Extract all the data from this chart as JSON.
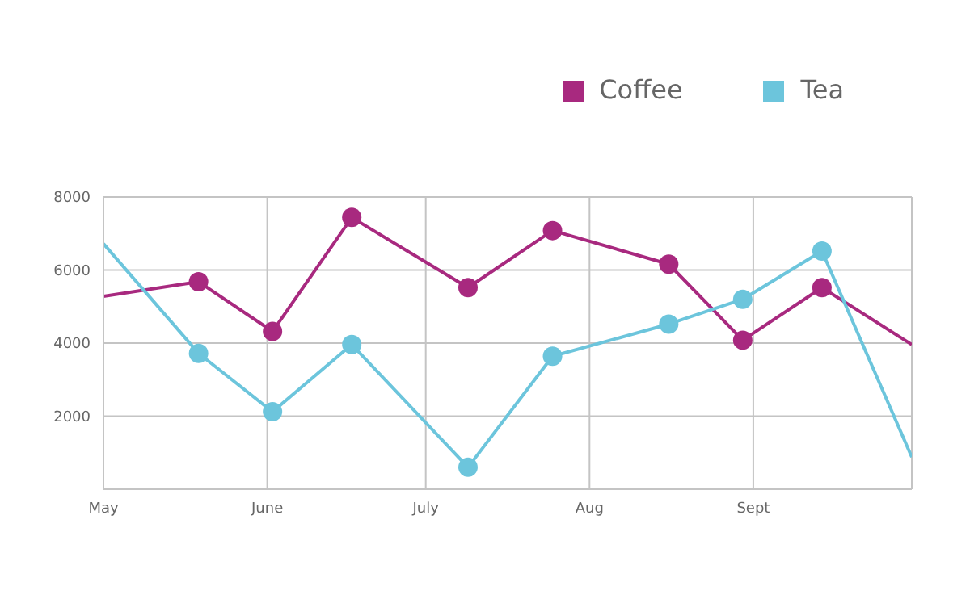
{
  "chart_data": {
    "type": "line",
    "x": [
      "--05-01",
      "--05-19",
      "--06-02",
      "--06-17",
      "--07-09",
      "--07-25",
      "--08-16",
      "--08-30",
      "--09-14",
      "--10-01"
    ],
    "series": [
      {
        "name": "Coffee",
        "color": "#a8297f",
        "values": [
          5280,
          5680,
          4320,
          7440,
          5520,
          7080,
          6160,
          4080,
          5520,
          3960
        ]
      },
      {
        "name": "Tea",
        "color": "#6cc5dc",
        "values": [
          6720,
          3720,
          2120,
          3960,
          600,
          3640,
          4520,
          5200,
          6520,
          880
        ]
      }
    ],
    "xlim": [
      "--05-01",
      "--10-01"
    ],
    "xticks": [
      {
        "value": "--05-01",
        "label": "May"
      },
      {
        "value": "--06-01",
        "label": "June"
      },
      {
        "value": "--07-01",
        "label": "July"
      },
      {
        "value": "--08-01",
        "label": "Aug"
      },
      {
        "value": "--09-01",
        "label": "Sept"
      }
    ],
    "ylim": [
      0,
      8000
    ],
    "yticks": [
      2000,
      4000,
      6000,
      8000
    ],
    "grid": true,
    "legend": "top right",
    "marker": "circle",
    "line_style": "solid"
  }
}
